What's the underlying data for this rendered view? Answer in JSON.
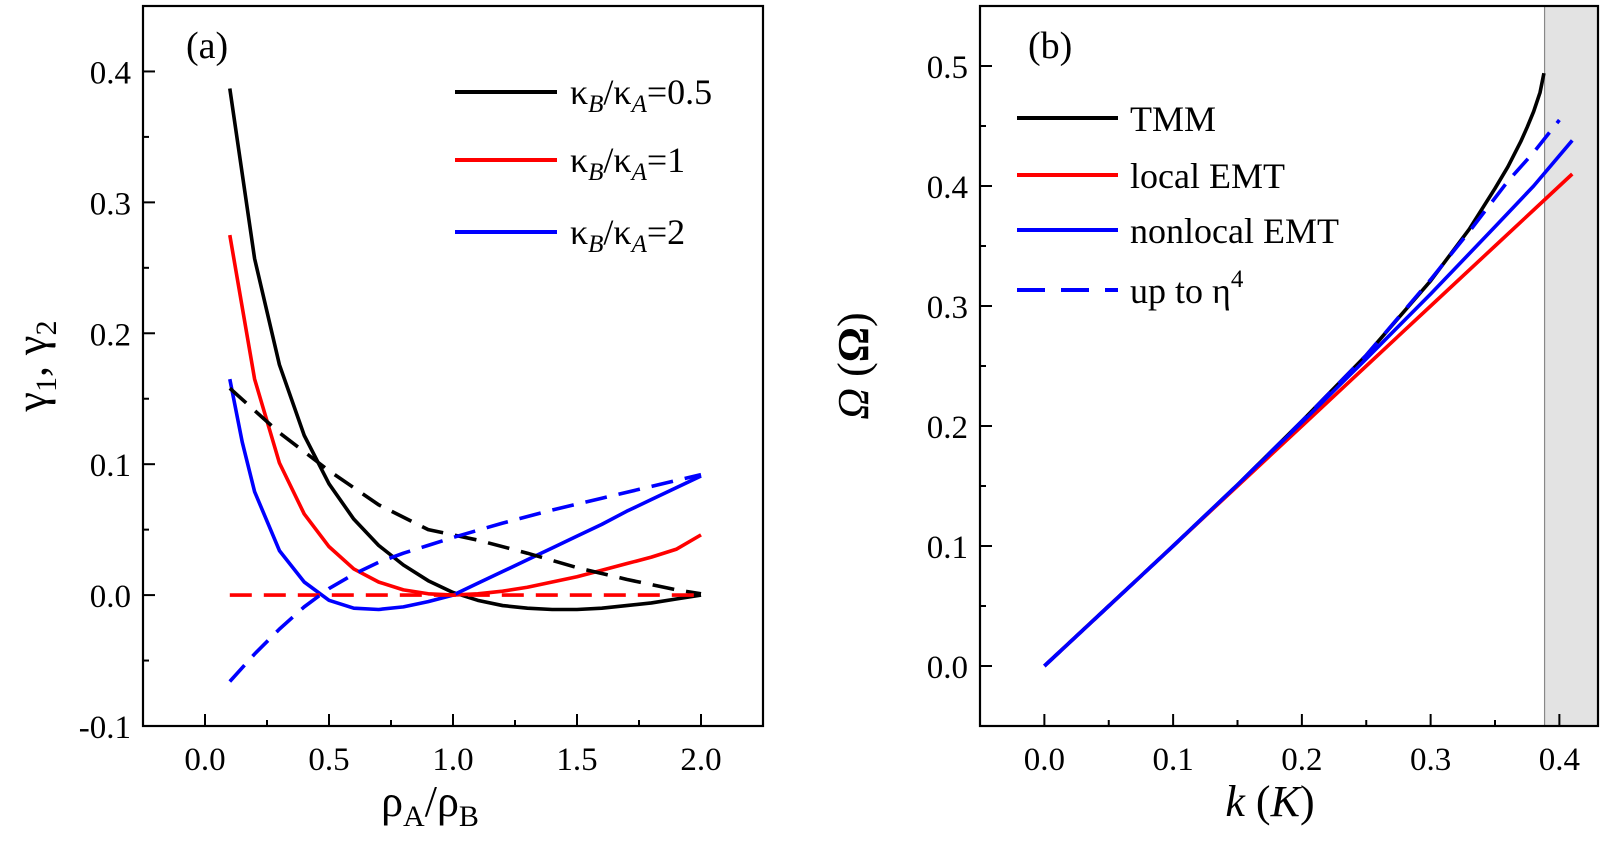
{
  "chart_data": [
    {
      "type": "line",
      "panel_label": "(a)",
      "xlabel": "ρA/ρB",
      "ylabel": "γ1, γ2",
      "xlim": [
        -0.25,
        2.25
      ],
      "ylim": [
        -0.1,
        0.45
      ],
      "xticks": [
        "0.0",
        "0.5",
        "1.0",
        "1.5",
        "2.0"
      ],
      "xtick_values": [
        0,
        0.5,
        1,
        1.5,
        2
      ],
      "yticks": [
        "-0.1",
        "0.0",
        "0.1",
        "0.2",
        "0.3",
        "0.4"
      ],
      "ytick_values": [
        -0.1,
        0,
        0.1,
        0.2,
        0.3,
        0.4
      ],
      "grid": false,
      "legend_position": "top-right",
      "legend": [
        "κB/κA=0.5",
        "κB/κA=1",
        "κB/κA=2"
      ],
      "series": [
        {
          "name": "κB/κA=0.5",
          "color": "#000000",
          "dash": "solid",
          "x": [
            0.1,
            0.2,
            0.3,
            0.4,
            0.5,
            0.6,
            0.7,
            0.8,
            0.9,
            1.0,
            1.1,
            1.2,
            1.3,
            1.4,
            1.5,
            1.6,
            1.7,
            1.8,
            1.9,
            2.0
          ],
          "y": [
            0.387,
            0.257,
            0.176,
            0.122,
            0.085,
            0.058,
            0.038,
            0.023,
            0.011,
            0.002,
            -0.004,
            -0.008,
            -0.01,
            -0.011,
            -0.011,
            -0.01,
            -0.008,
            -0.006,
            -0.003,
            0.0
          ]
        },
        {
          "name": "κB/κA=1",
          "color": "#ff0000",
          "dash": "solid",
          "x": [
            0.1,
            0.2,
            0.3,
            0.4,
            0.5,
            0.6,
            0.7,
            0.8,
            0.9,
            1.0,
            1.1,
            1.2,
            1.3,
            1.4,
            1.5,
            1.6,
            1.7,
            1.8,
            1.9,
            2.0
          ],
          "y": [
            0.275,
            0.165,
            0.101,
            0.062,
            0.037,
            0.02,
            0.01,
            0.004,
            0.001,
            0.0,
            0.001,
            0.003,
            0.006,
            0.01,
            0.014,
            0.019,
            0.024,
            0.029,
            0.035,
            0.046
          ]
        },
        {
          "name": "κB/κA=2",
          "color": "#0000ff",
          "dash": "solid",
          "x": [
            0.1,
            0.15,
            0.2,
            0.3,
            0.4,
            0.5,
            0.6,
            0.7,
            0.8,
            0.9,
            1.0,
            1.1,
            1.2,
            1.3,
            1.4,
            1.5,
            1.6,
            1.7,
            1.8,
            1.9,
            2.0
          ],
          "y": [
            0.165,
            0.117,
            0.079,
            0.034,
            0.01,
            -0.004,
            -0.01,
            -0.011,
            -0.009,
            -0.005,
            0.0,
            0.009,
            0.018,
            0.027,
            0.036,
            0.045,
            0.054,
            0.064,
            0.073,
            0.082,
            0.091
          ]
        },
        {
          "name": "",
          "color": "#000000",
          "dash": "dashed",
          "x": [
            0.1,
            0.3,
            0.5,
            0.7,
            0.9,
            1.1,
            1.3,
            1.5,
            1.7,
            1.9,
            2.0
          ],
          "y": [
            0.158,
            0.124,
            0.095,
            0.069,
            0.05,
            0.042,
            0.032,
            0.021,
            0.012,
            0.004,
            0.001
          ]
        },
        {
          "name": "",
          "color": "#ff0000",
          "dash": "dashed",
          "x": [
            0.1,
            2.0
          ],
          "y": [
            0.0,
            0.0
          ]
        },
        {
          "name": "",
          "color": "#0000ff",
          "dash": "dashed",
          "x": [
            0.1,
            0.2,
            0.3,
            0.4,
            0.5,
            0.6,
            0.7,
            0.8,
            0.9,
            1.0,
            1.2,
            1.4,
            1.6,
            1.8,
            2.0
          ],
          "y": [
            -0.066,
            -0.045,
            -0.026,
            -0.009,
            0.005,
            0.016,
            0.025,
            0.032,
            0.038,
            0.044,
            0.055,
            0.065,
            0.074,
            0.083,
            0.092
          ]
        }
      ]
    },
    {
      "type": "line",
      "panel_label": "(b)",
      "xlabel": "k (K)",
      "ylabel": "Ω (Ω)",
      "xlim": [
        -0.05,
        0.43
      ],
      "ylim": [
        -0.05,
        0.55
      ],
      "xticks": [
        "0.0",
        "0.1",
        "0.2",
        "0.3",
        "0.4"
      ],
      "xtick_values": [
        0,
        0.1,
        0.2,
        0.3,
        0.4
      ],
      "yticks": [
        "0.0",
        "0.1",
        "0.2",
        "0.3",
        "0.4",
        "0.5"
      ],
      "ytick_values": [
        0,
        0.1,
        0.2,
        0.3,
        0.4,
        0.5
      ],
      "grid": false,
      "shaded_region_x": [
        0.3885,
        0.43
      ],
      "shaded_color": "#e3e3e3",
      "legend_position": "top-left",
      "legend": [
        "TMM",
        "local EMT",
        "nonlocal EMT",
        "up to η4"
      ],
      "series": [
        {
          "name": "TMM",
          "color": "#000000",
          "dash": "solid",
          "x": [
            0.0,
            0.05,
            0.1,
            0.15,
            0.2,
            0.25,
            0.3,
            0.33,
            0.35,
            0.36,
            0.37,
            0.375,
            0.38,
            0.385,
            0.388
          ],
          "y": [
            0.0,
            0.05,
            0.1,
            0.151,
            0.204,
            0.259,
            0.321,
            0.364,
            0.398,
            0.416,
            0.437,
            0.449,
            0.462,
            0.478,
            0.494
          ]
        },
        {
          "name": "local EMT",
          "color": "#ff0000",
          "dash": "solid",
          "x": [
            0.0,
            0.05,
            0.1,
            0.15,
            0.2,
            0.25,
            0.3,
            0.35,
            0.38,
            0.41
          ],
          "y": [
            0.0,
            0.05,
            0.1,
            0.15,
            0.2,
            0.25,
            0.3,
            0.35,
            0.38,
            0.41
          ]
        },
        {
          "name": "nonlocal EMT",
          "color": "#0000ff",
          "dash": "solid",
          "x": [
            0.0,
            0.05,
            0.1,
            0.15,
            0.2,
            0.25,
            0.3,
            0.35,
            0.38,
            0.41
          ],
          "y": [
            0.0,
            0.05,
            0.1,
            0.151,
            0.203,
            0.256,
            0.31,
            0.366,
            0.4,
            0.438
          ]
        },
        {
          "name": "up to η4",
          "color": "#0000ff",
          "dash": "dashed",
          "x": [
            0.0,
            0.05,
            0.1,
            0.15,
            0.2,
            0.25,
            0.3,
            0.33,
            0.36,
            0.38,
            0.4
          ],
          "y": [
            0.0,
            0.05,
            0.1,
            0.151,
            0.204,
            0.259,
            0.322,
            0.362,
            0.404,
            0.428,
            0.455
          ]
        }
      ]
    }
  ]
}
